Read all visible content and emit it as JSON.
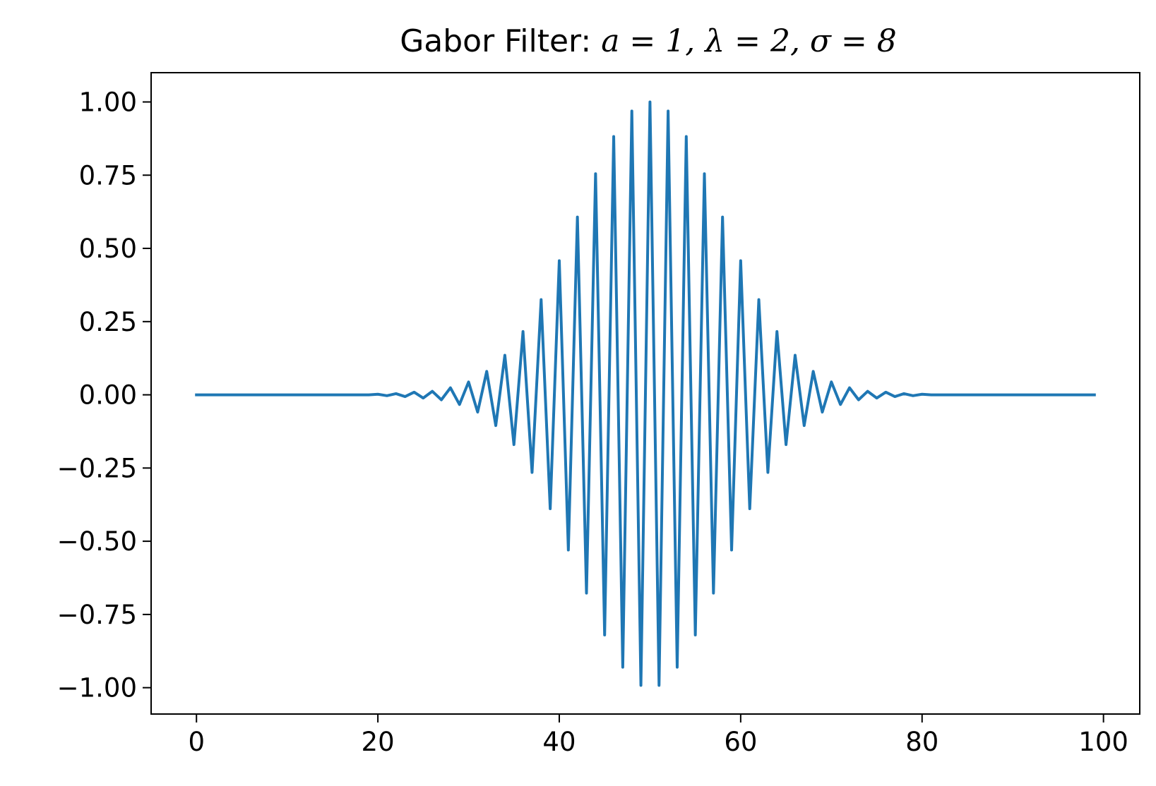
{
  "chart_data": {
    "type": "line",
    "title_parts": {
      "prefix": "Gabor Filter: ",
      "math": "a = 1, λ = 2, σ = 8"
    },
    "xlabel": "",
    "ylabel": "",
    "xlim": [
      -5,
      104
    ],
    "ylim": [
      -1.09,
      1.1
    ],
    "x_ticks": [
      0,
      20,
      40,
      60,
      80,
      100
    ],
    "x_tick_labels": [
      "0",
      "20",
      "40",
      "60",
      "80",
      "100"
    ],
    "y_ticks": [
      1.0,
      0.75,
      0.5,
      0.25,
      0.0,
      -0.25,
      -0.5,
      -0.75,
      -1.0
    ],
    "y_tick_labels": [
      "1.00",
      "0.75",
      "0.50",
      "0.25",
      "0.00",
      "−0.25",
      "−0.50",
      "−0.75",
      "−1.00"
    ],
    "grid": false,
    "legend": "none",
    "series": [
      {
        "color": "#1f77b4",
        "x": [
          0,
          1,
          2,
          3,
          4,
          5,
          6,
          7,
          8,
          9,
          10,
          11,
          12,
          13,
          14,
          15,
          16,
          17,
          18,
          19,
          20,
          21,
          22,
          23,
          24,
          25,
          26,
          27,
          28,
          29,
          30,
          31,
          32,
          33,
          34,
          35,
          36,
          37,
          38,
          39,
          40,
          41,
          42,
          43,
          44,
          45,
          46,
          47,
          48,
          49,
          50,
          51,
          52,
          53,
          54,
          55,
          56,
          57,
          58,
          59,
          60,
          61,
          62,
          63,
          64,
          65,
          66,
          67,
          68,
          69,
          70,
          71,
          72,
          73,
          74,
          75,
          76,
          77,
          78,
          79,
          80,
          81,
          82,
          83,
          84,
          85,
          86,
          87,
          88,
          89,
          90,
          91,
          92,
          93,
          94,
          95,
          96,
          97,
          98,
          99
        ],
        "y": [
          0.0,
          0.0,
          0.0,
          0.0,
          0.0,
          0.0,
          0.0,
          0.0,
          0.0,
          0.0,
          0.0,
          0.0,
          0.0,
          0.0,
          0.0,
          0.0,
          0.0,
          0.0,
          0.0,
          0.0,
          0.002,
          -0.003,
          0.004,
          -0.006,
          0.009,
          -0.011,
          0.012,
          -0.017,
          0.024,
          -0.033,
          0.044,
          -0.059,
          0.08,
          -0.105,
          0.135,
          -0.17,
          0.216,
          -0.265,
          0.325,
          -0.389,
          0.458,
          -0.53,
          0.607,
          -0.677,
          0.755,
          -0.82,
          0.882,
          -0.93,
          0.969,
          -0.992,
          1.0,
          -0.992,
          0.969,
          -0.93,
          0.882,
          -0.82,
          0.755,
          -0.677,
          0.607,
          -0.53,
          0.458,
          -0.389,
          0.325,
          -0.265,
          0.216,
          -0.17,
          0.135,
          -0.105,
          0.08,
          -0.059,
          0.044,
          -0.033,
          0.024,
          -0.017,
          0.012,
          -0.011,
          0.009,
          -0.006,
          0.004,
          -0.003,
          0.002,
          0.0,
          0.0,
          0.0,
          0.0,
          0.0,
          0.0,
          0.0,
          0.0,
          0.0,
          0.0,
          0.0,
          0.0,
          0.0,
          0.0,
          0.0,
          0.0,
          0.0,
          0.0,
          0.0
        ]
      }
    ]
  }
}
